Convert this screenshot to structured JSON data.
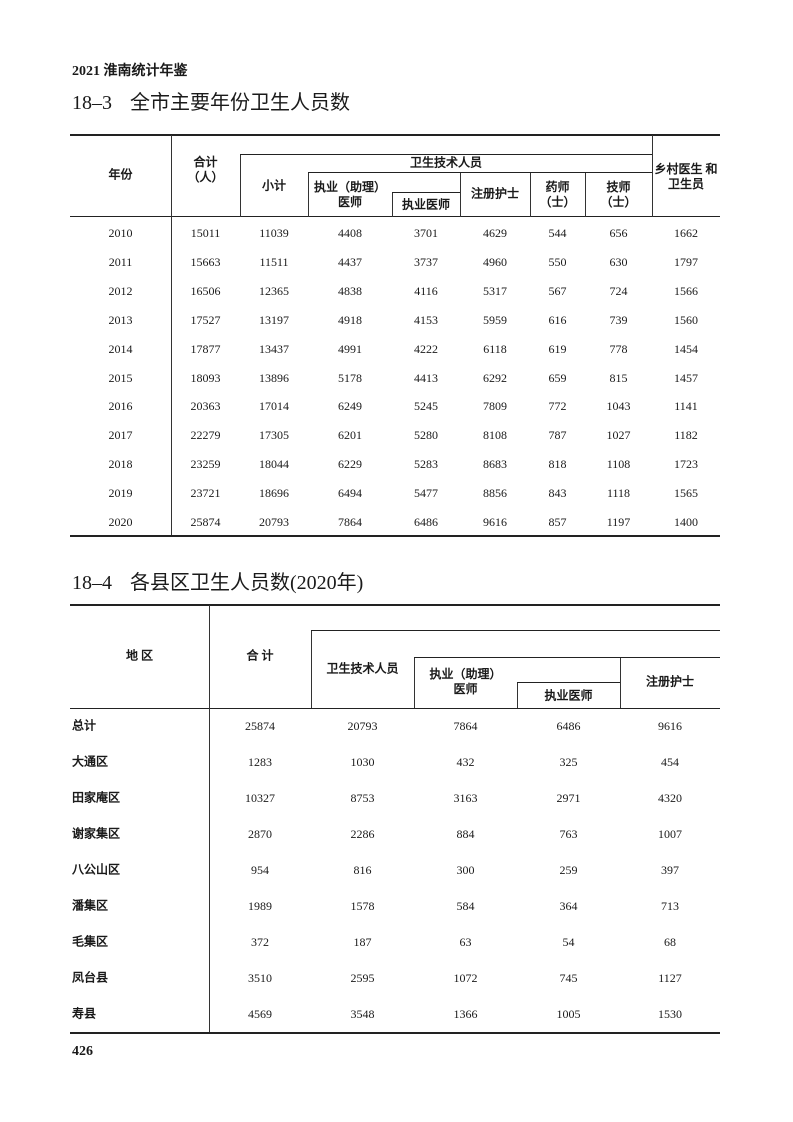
{
  "running_header": "2021 淮南统计年鉴",
  "table1": {
    "number": "18–3",
    "title": "全市主要年份卫生人员数",
    "headers": {
      "year": "年份",
      "total": "合计\n（人）",
      "tech_group": "卫生技术人员",
      "subtotal": "小计",
      "physician": "执业（助理）\n医师",
      "licensed_physician": "执业医师",
      "nurse": "注册护士",
      "pharmacist": "药师\n（士）",
      "technician": "技师\n（士）",
      "village": "乡村医生 和\n卫生员"
    },
    "rows": [
      [
        "2010",
        "15011",
        "11039",
        "4408",
        "3701",
        "4629",
        "544",
        "656",
        "1662"
      ],
      [
        "2011",
        "15663",
        "11511",
        "4437",
        "3737",
        "4960",
        "550",
        "630",
        "1797"
      ],
      [
        "2012",
        "16506",
        "12365",
        "4838",
        "4116",
        "5317",
        "567",
        "724",
        "1566"
      ],
      [
        "2013",
        "17527",
        "13197",
        "4918",
        "4153",
        "5959",
        "616",
        "739",
        "1560"
      ],
      [
        "2014",
        "17877",
        "13437",
        "4991",
        "4222",
        "6118",
        "619",
        "778",
        "1454"
      ],
      [
        "2015",
        "18093",
        "13896",
        "5178",
        "4413",
        "6292",
        "659",
        "815",
        "1457"
      ],
      [
        "2016",
        "20363",
        "17014",
        "6249",
        "5245",
        "7809",
        "772",
        "1043",
        "1141"
      ],
      [
        "2017",
        "22279",
        "17305",
        "6201",
        "5280",
        "8108",
        "787",
        "1027",
        "1182"
      ],
      [
        "2018",
        "23259",
        "18044",
        "6229",
        "5283",
        "8683",
        "818",
        "1108",
        "1723"
      ],
      [
        "2019",
        "23721",
        "18696",
        "6494",
        "5477",
        "8856",
        "843",
        "1118",
        "1565"
      ],
      [
        "2020",
        "25874",
        "20793",
        "7864",
        "6486",
        "9616",
        "857",
        "1197",
        "1400"
      ]
    ]
  },
  "table2": {
    "number": "18–4",
    "title": "各县区卫生人员数(2020年)",
    "headers": {
      "region": "地 区",
      "total": "合 计",
      "tech": "卫生技术人员",
      "physician": "执业（助理）\n医师",
      "licensed_physician": "执业医师",
      "nurse": "注册护士"
    },
    "rows": [
      [
        "总计",
        "25874",
        "20793",
        "7864",
        "6486",
        "9616"
      ],
      [
        "大通区",
        "1283",
        "1030",
        "432",
        "325",
        "454"
      ],
      [
        "田家庵区",
        "10327",
        "8753",
        "3163",
        "2971",
        "4320"
      ],
      [
        "谢家集区",
        "2870",
        "2286",
        "884",
        "763",
        "1007"
      ],
      [
        "八公山区",
        "954",
        "816",
        "300",
        "259",
        "397"
      ],
      [
        "潘集区",
        "1989",
        "1578",
        "584",
        "364",
        "713"
      ],
      [
        "毛集区",
        "372",
        "187",
        "63",
        "54",
        "68"
      ],
      [
        "凤台县",
        "3510",
        "2595",
        "1072",
        "745",
        "1127"
      ],
      [
        "寿县",
        "4569",
        "3548",
        "1366",
        "1005",
        "1530"
      ]
    ]
  },
  "page_number": "426"
}
